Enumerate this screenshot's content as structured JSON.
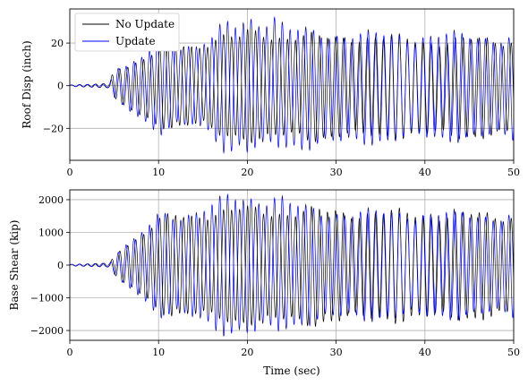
{
  "chart_data": [
    {
      "type": "line",
      "xlabel": "",
      "ylabel": "Roof Disp (inch)",
      "xlim": [
        0,
        50
      ],
      "ylim": [
        -35,
        36
      ],
      "xticks": [
        0,
        10,
        20,
        30,
        40,
        50
      ],
      "yticks": [
        -20,
        0,
        20
      ],
      "grid": true,
      "legend": "top-left",
      "series": [
        {
          "name": "No Update",
          "color": "#000000",
          "envelope": {
            "t": [
              0,
              4.5,
              5,
              6,
              7,
              8,
              9,
              10,
              11,
              12,
              13,
              14,
              15,
              16,
              17,
              18,
              19,
              20,
              22,
              24,
              26,
              28,
              30,
              32,
              35,
              40,
              45,
              50
            ],
            "max": [
              0.3,
              1,
              9,
              9,
              10,
              12,
              14,
              16,
              18,
              18,
              19,
              18,
              19,
              22,
              23,
              22,
              22,
              24,
              24,
              23,
              23,
              22,
              22,
              23,
              22,
              21,
              21,
              21
            ],
            "min": [
              -0.3,
              -1,
              -6,
              -10,
              -12,
              -14,
              -16,
              -18,
              -18,
              -19,
              -19,
              -18,
              -18,
              -22,
              -23,
              -22,
              -23,
              -24,
              -25,
              -24,
              -23,
              -24,
              -23,
              -24,
              -23,
              -23,
              -23,
              -23
            ]
          },
          "period": 0.9,
          "phase": 0.0
        },
        {
          "name": "Update",
          "color": "#0000ff",
          "envelope": {
            "t": [
              0,
              4.5,
              5,
              6,
              7,
              8,
              9,
              10,
              11,
              12,
              13,
              14,
              15,
              16,
              17,
              18,
              19,
              20,
              21,
              22,
              23,
              24,
              25,
              26,
              28,
              30,
              32,
              35,
              40,
              45,
              50
            ],
            "max": [
              0.3,
              1,
              9,
              9,
              10,
              12,
              16,
              24,
              21,
              18,
              20,
              18,
              20,
              22,
              26,
              28,
              27,
              32,
              30,
              31,
              33,
              28,
              25,
              25,
              24,
              24,
              24,
              23,
              23,
              23,
              22
            ],
            "min": [
              -0.3,
              -1,
              -6,
              -10,
              -12,
              -14,
              -18,
              -22,
              -20,
              -19,
              -20,
              -18,
              -20,
              -22,
              -27,
              -30,
              -28,
              -31,
              -30,
              -30,
              -28,
              -28,
              -27,
              -28,
              -27,
              -27,
              -26,
              -25,
              -24,
              -24,
              -24
            ]
          },
          "period": 0.88,
          "phase": 0.3
        }
      ]
    },
    {
      "type": "line",
      "xlabel": "Time (sec)",
      "ylabel": "Base Shear (kip)",
      "xlim": [
        0,
        50
      ],
      "ylim": [
        -2300,
        2300
      ],
      "xticks": [
        0,
        10,
        20,
        30,
        40,
        50
      ],
      "yticks": [
        -2000,
        -1000,
        0,
        1000,
        2000
      ],
      "grid": true,
      "series": [
        {
          "name": "No Update",
          "color": "#000000",
          "envelope": {
            "t": [
              0,
              4.5,
              5,
              6,
              7,
              8,
              9,
              10,
              11,
              12,
              13,
              14,
              15,
              16,
              17,
              18,
              19,
              20,
              22,
              24,
              26,
              28,
              30,
              32,
              35,
              40,
              45,
              50
            ],
            "max": [
              20,
              60,
              300,
              600,
              700,
              900,
              1100,
              1300,
              1400,
              1500,
              1500,
              1500,
              1550,
              1600,
              1600,
              1600,
              1650,
              1650,
              1650,
              1600,
              1600,
              1600,
              1600,
              1600,
              1550,
              1550,
              1500,
              1500
            ],
            "min": [
              -20,
              -60,
              -300,
              -600,
              -700,
              -900,
              -1100,
              -1300,
              -1400,
              -1500,
              -1500,
              -1500,
              -1550,
              -1600,
              -1600,
              -1650,
              -1650,
              -1650,
              -1700,
              -1700,
              -1700,
              -1700,
              -1650,
              -1650,
              -1600,
              -1600,
              -1550,
              -1550
            ]
          },
          "period": 0.9,
          "phase": 0.0
        },
        {
          "name": "Update",
          "color": "#0000ff",
          "envelope": {
            "t": [
              0,
              4.5,
              5,
              6,
              7,
              8,
              9,
              10,
              11,
              12,
              13,
              14,
              15,
              16,
              17,
              18,
              19,
              20,
              21,
              22,
              23,
              24,
              25,
              26,
              28,
              30,
              32,
              35,
              40,
              45,
              50
            ],
            "max": [
              20,
              60,
              300,
              600,
              700,
              900,
              1200,
              1500,
              1500,
              1500,
              1600,
              1600,
              1700,
              1800,
              1900,
              2000,
              2000,
              2000,
              2050,
              2050,
              2100,
              2000,
              1800,
              1700,
              1600,
              1600,
              1600,
              1550,
              1550,
              1500,
              1500
            ],
            "min": [
              -20,
              -60,
              -300,
              -600,
              -700,
              -900,
              -1200,
              -1500,
              -1500,
              -1500,
              -1600,
              -1600,
              -1700,
              -1800,
              -1900,
              -2000,
              -2000,
              -2050,
              -2100,
              -2000,
              -2000,
              -1900,
              -1800,
              -1700,
              -1650,
              -1600,
              -1600,
              -1550,
              -1550,
              -1500,
              -1500
            ]
          },
          "period": 0.88,
          "phase": 0.3
        }
      ]
    }
  ]
}
